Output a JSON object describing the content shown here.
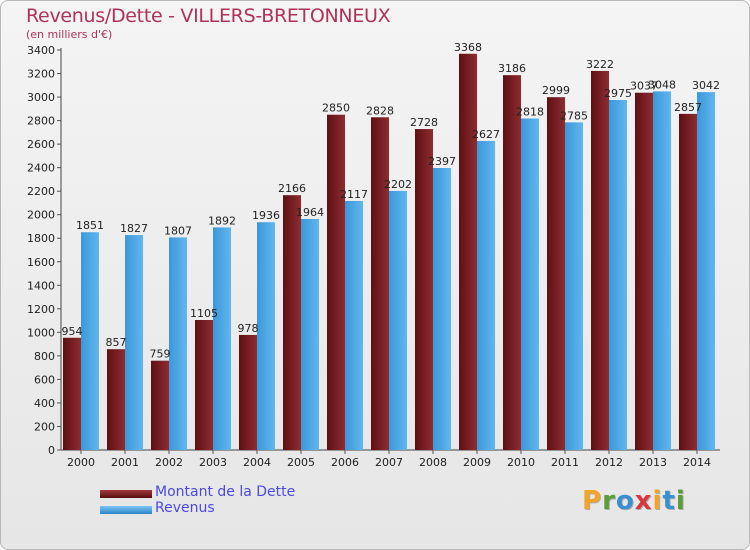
{
  "title": "Revenus/Dette - VILLERS-BRETONNEUX",
  "subtitle": "(en milliers d'€)",
  "colors": {
    "dette": "#7a1e22",
    "revenus": "#4aa6e4",
    "title": "#b0325a",
    "legend_text": "#4a4ae0"
  },
  "legend": {
    "dette_label": "Montant de la Dette",
    "revenus_label": "Revenus"
  },
  "logo": {
    "letters": [
      "P",
      "r",
      "o",
      "x",
      "i",
      "t",
      "i"
    ],
    "colors": [
      "#f3a32a",
      "#5a9e3a",
      "#3a8fd0",
      "#d9363e",
      "#f3a32a",
      "#3a8fd0",
      "#5a9e3a"
    ]
  },
  "chart_data": {
    "type": "bar",
    "title": "Revenus/Dette - VILLERS-BRETONNEUX",
    "ylabel": "(en milliers d'€)",
    "xlabel": "",
    "ylim": [
      0,
      3400
    ],
    "ytick_step": 200,
    "grid": false,
    "legend_position": "bottom-left",
    "categories": [
      "2000",
      "2001",
      "2002",
      "2003",
      "2004",
      "2005",
      "2006",
      "2007",
      "2008",
      "2009",
      "2010",
      "2011",
      "2012",
      "2013",
      "2014"
    ],
    "series": [
      {
        "name": "Montant de la Dette",
        "values": [
          954,
          857,
          759,
          1105,
          978,
          2166,
          2850,
          2828,
          2728,
          3368,
          3186,
          2999,
          3222,
          3037,
          2857
        ],
        "labels": [
          "954",
          "857",
          "759",
          "1105",
          "978",
          "2166",
          "2850",
          "2828",
          "2728",
          "3368",
          "3186",
          "2999",
          "3222",
          "3037",
          "2857"
        ]
      },
      {
        "name": "Revenus",
        "values": [
          1851,
          1827,
          1807,
          1892,
          1936,
          1964,
          2117,
          2202,
          2397,
          2627,
          2818,
          2785,
          2975,
          3048,
          3042
        ],
        "labels": [
          "1851",
          "1827",
          "1807",
          "1892",
          "1936",
          "1964",
          "2117",
          "2202",
          "2397",
          "2627",
          "2818",
          "2785",
          "2975",
          "3048",
          "3042"
        ]
      }
    ]
  }
}
